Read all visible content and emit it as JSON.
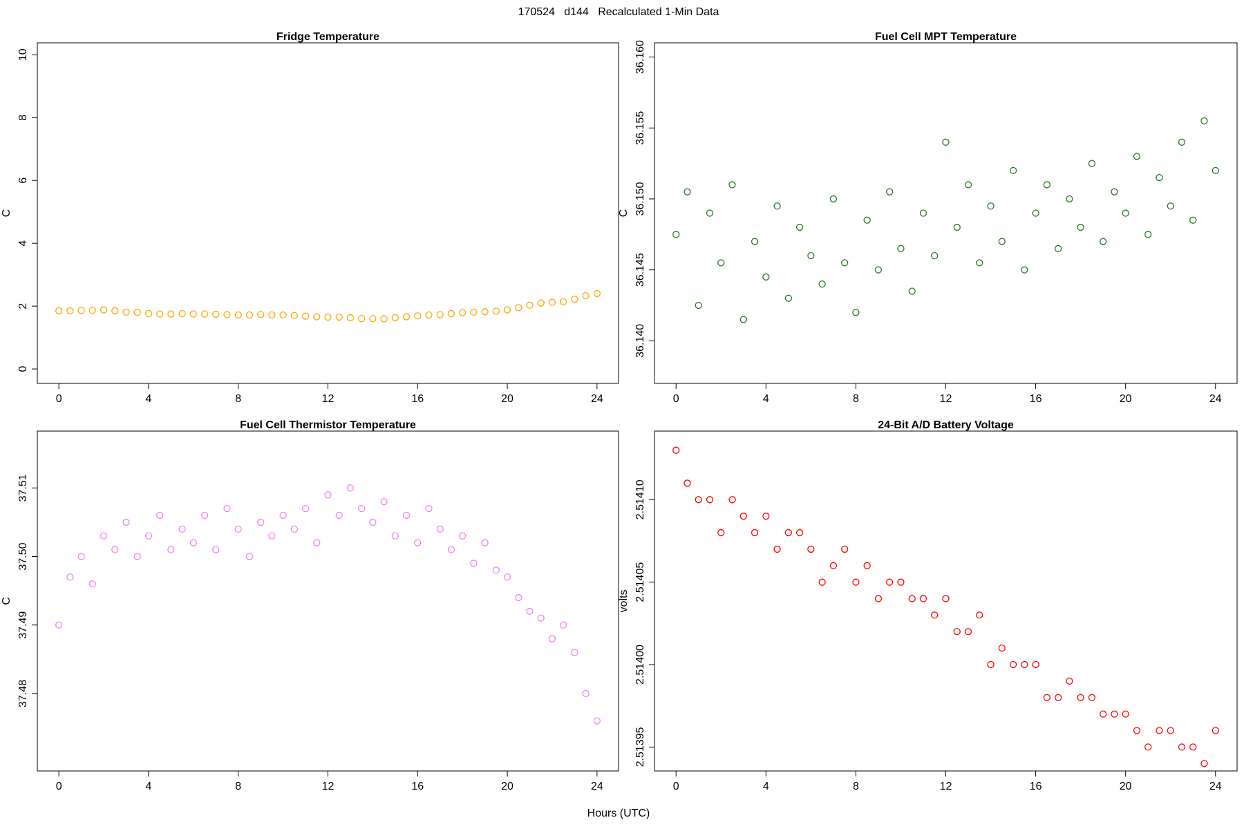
{
  "title": "170524   d144   Recalculated 1-Min Data",
  "xlabel": "Hours (UTC)",
  "chart_data": [
    {
      "type": "scatter",
      "title": "Fridge Temperature",
      "ylabel": "C",
      "color": "#ffa500",
      "x": [
        0,
        0.5,
        1,
        1.5,
        2,
        2.5,
        3,
        3.5,
        4,
        4.5,
        5,
        5.5,
        6,
        6.5,
        7,
        7.5,
        8,
        8.5,
        9,
        9.5,
        10,
        10.5,
        11,
        11.5,
        12,
        12.5,
        13,
        13.5,
        14,
        14.5,
        15,
        15.5,
        16,
        16.5,
        17,
        17.5,
        18,
        18.5,
        19,
        19.5,
        20,
        20.5,
        21,
        21.5,
        22,
        22.5,
        23,
        23.5,
        24
      ],
      "values": [
        1.85,
        1.85,
        1.86,
        1.87,
        1.88,
        1.85,
        1.81,
        1.8,
        1.76,
        1.75,
        1.75,
        1.76,
        1.75,
        1.75,
        1.74,
        1.73,
        1.72,
        1.72,
        1.73,
        1.72,
        1.72,
        1.7,
        1.68,
        1.66,
        1.65,
        1.65,
        1.63,
        1.6,
        1.6,
        1.6,
        1.63,
        1.66,
        1.69,
        1.72,
        1.73,
        1.76,
        1.79,
        1.81,
        1.82,
        1.84,
        1.88,
        1.95,
        2.03,
        2.1,
        2.12,
        2.14,
        2.22,
        2.33,
        2.4
      ],
      "xlim": [
        -0.96,
        24.96
      ],
      "xticks": [
        0,
        4,
        8,
        12,
        16,
        20,
        24
      ],
      "ylim": [
        -0.46,
        10.38
      ],
      "yticks": [
        0,
        2,
        4,
        6,
        8,
        10
      ]
    },
    {
      "type": "scatter",
      "title": "Fuel Cell MPT Temperature",
      "ylabel": "C",
      "color": "#1f7a1f",
      "x": [
        0,
        0.5,
        1,
        1.5,
        2,
        2.5,
        3,
        3.5,
        4,
        4.5,
        5,
        5.5,
        6,
        6.5,
        7,
        7.5,
        8,
        8.5,
        9,
        9.5,
        10,
        10.5,
        11,
        11.5,
        12,
        12.5,
        13,
        13.5,
        14,
        14.5,
        15,
        15.5,
        16,
        16.5,
        17,
        17.5,
        18,
        18.5,
        19,
        19.5,
        20,
        20.5,
        21,
        21.5,
        22,
        22.5,
        23,
        23.5,
        24
      ],
      "values": [
        36.1475,
        36.1505,
        36.1425,
        36.149,
        36.1455,
        36.151,
        36.1415,
        36.147,
        36.1445,
        36.1495,
        36.143,
        36.148,
        36.146,
        36.144,
        36.15,
        36.1455,
        36.142,
        36.1485,
        36.145,
        36.1505,
        36.1465,
        36.1435,
        36.149,
        36.146,
        36.154,
        36.148,
        36.151,
        36.1455,
        36.1495,
        36.147,
        36.152,
        36.145,
        36.149,
        36.151,
        36.1465,
        36.15,
        36.148,
        36.1525,
        36.147,
        36.1505,
        36.149,
        36.153,
        36.1475,
        36.1515,
        36.1495,
        36.154,
        36.1485,
        36.1555,
        36.152
      ],
      "xlim": [
        -0.96,
        24.96
      ],
      "xticks": [
        0,
        4,
        8,
        12,
        16,
        20,
        24
      ],
      "ylim": [
        36.137,
        36.161
      ],
      "yticks": [
        {
          "value": 36.14,
          "label": "36.140"
        },
        36.145,
        {
          "value": 36.15,
          "label": "36.150"
        },
        36.155,
        {
          "value": 36.16,
          "label": "36.160"
        }
      ]
    },
    {
      "type": "scatter",
      "title": "Fuel Cell Thermistor Temperature",
      "ylabel": "C",
      "color": "#ee82ee",
      "x": [
        0,
        0.5,
        1,
        1.5,
        2,
        2.5,
        3,
        3.5,
        4,
        4.5,
        5,
        5.5,
        6,
        6.5,
        7,
        7.5,
        8,
        8.5,
        9,
        9.5,
        10,
        10.5,
        11,
        11.5,
        12,
        12.5,
        13,
        13.5,
        14,
        14.5,
        15,
        15.5,
        16,
        16.5,
        17,
        17.5,
        18,
        18.5,
        19,
        19.5,
        20,
        20.5,
        21,
        21.5,
        22,
        22.5,
        23,
        23.5,
        24
      ],
      "values": [
        37.49,
        37.497,
        37.5,
        37.496,
        37.503,
        37.501,
        37.505,
        37.5,
        37.503,
        37.506,
        37.501,
        37.504,
        37.502,
        37.506,
        37.501,
        37.507,
        37.504,
        37.5,
        37.505,
        37.503,
        37.506,
        37.504,
        37.507,
        37.502,
        37.509,
        37.506,
        37.51,
        37.507,
        37.505,
        37.508,
        37.503,
        37.506,
        37.502,
        37.507,
        37.504,
        37.501,
        37.503,
        37.499,
        37.502,
        37.498,
        37.497,
        37.494,
        37.492,
        37.491,
        37.488,
        37.49,
        37.486,
        37.48,
        37.476
      ],
      "xlim": [
        -0.96,
        24.96
      ],
      "xticks": [
        0,
        4,
        8,
        12,
        16,
        20,
        24
      ],
      "ylim": [
        37.4687,
        37.5183
      ],
      "yticks": [
        37.48,
        37.49,
        {
          "value": 37.5,
          "label": "37.50"
        },
        37.51
      ]
    },
    {
      "type": "scatter",
      "title": "24-Bit A/D Battery Voltage",
      "ylabel": "volts",
      "color": "#ff0000",
      "x": [
        0,
        0.5,
        1,
        1.5,
        2,
        2.5,
        3,
        3.5,
        4,
        4.5,
        5,
        5.5,
        6,
        6.5,
        7,
        7.5,
        8,
        8.5,
        9,
        9.5,
        10,
        10.5,
        11,
        11.5,
        12,
        12.5,
        13,
        13.5,
        14,
        14.5,
        15,
        15.5,
        16,
        16.5,
        17,
        17.5,
        18,
        18.5,
        19,
        19.5,
        20,
        20.5,
        21,
        21.5,
        22,
        22.5,
        23,
        23.5,
        24
      ],
      "values": [
        2.51413,
        2.51411,
        2.5141,
        2.5141,
        2.51408,
        2.5141,
        2.51409,
        2.51408,
        2.51409,
        2.51407,
        2.51408,
        2.51408,
        2.51407,
        2.51405,
        2.51406,
        2.51407,
        2.51405,
        2.51406,
        2.51404,
        2.51405,
        2.51405,
        2.51404,
        2.51404,
        2.51403,
        2.51404,
        2.51402,
        2.51402,
        2.51403,
        2.514,
        2.51401,
        2.514,
        2.514,
        2.514,
        2.51398,
        2.51398,
        2.51399,
        2.51398,
        2.51398,
        2.51397,
        2.51397,
        2.51397,
        2.51396,
        2.51395,
        2.51396,
        2.51396,
        2.51395,
        2.51395,
        2.51394,
        2.51396
      ],
      "xlim": [
        -0.96,
        24.96
      ],
      "xticks": [
        0,
        4,
        8,
        12,
        16,
        20,
        24
      ],
      "ylim": [
        2.5139355,
        2.5141416
      ],
      "yticks": [
        2.51395,
        {
          "value": 2.514,
          "label": "2.51400"
        },
        2.51405,
        {
          "value": 2.5141,
          "label": "2.51410"
        }
      ]
    }
  ]
}
